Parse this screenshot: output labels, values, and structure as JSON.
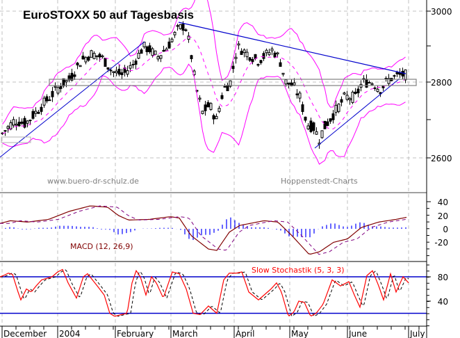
{
  "chart_data": [
    {
      "type": "candlestick",
      "title": "EuroSTOXX 50 auf Tagesbasis",
      "panel": "price",
      "ylabel": "",
      "ylim": [
        2520,
        3030
      ],
      "y_ticks": [
        2600,
        2800,
        3000
      ],
      "x_labels": [
        "December",
        "2004",
        "February",
        "March",
        "April",
        "May",
        "June",
        "July"
      ],
      "grid": true,
      "watermarks": [
        "www.buero-dr-schulz.de",
        "Hoppenstedt-Charts"
      ],
      "overlays": [
        "Bollinger upper band (magenta)",
        "Bollinger lower band (magenta)",
        "moving average (magenta dashed)",
        "trendlines (blue)",
        "horizontal support box at 2800 (gray)"
      ],
      "approx_close_by_month": [
        {
          "period": "early December 2003",
          "close": 2680
        },
        {
          "period": "end December 2003",
          "close": 2760
        },
        {
          "period": "mid January 2004",
          "close": 2880
        },
        {
          "period": "end January 2004",
          "close": 2820
        },
        {
          "period": "mid February 2004",
          "close": 2900
        },
        {
          "period": "early March 2004",
          "close": 2960
        },
        {
          "period": "mid March 2004",
          "close": 2720
        },
        {
          "period": "end March 2004",
          "close": 2790
        },
        {
          "period": "early April 2004",
          "close": 2900
        },
        {
          "period": "mid April 2004",
          "close": 2890
        },
        {
          "period": "end April 2004",
          "close": 2780
        },
        {
          "period": "early May 2004",
          "close": 2670
        },
        {
          "period": "mid May 2004",
          "close": 2650
        },
        {
          "period": "end May 2004",
          "close": 2740
        },
        {
          "period": "mid June 2004",
          "close": 2800
        },
        {
          "period": "end June 2004",
          "close": 2820
        }
      ],
      "trendlines": [
        {
          "from": {
            "period": "early December 2003",
            "value": 2600
          },
          "to": {
            "period": "mid January 2004",
            "value": 2890
          }
        },
        {
          "from": {
            "period": "early March 2004",
            "value": 2970
          },
          "to": {
            "period": "end June 2004",
            "value": 2810
          }
        },
        {
          "from": {
            "period": "mid May 2004",
            "value": 2625
          },
          "to": {
            "period": "end June 2004",
            "value": 2800
          }
        }
      ]
    },
    {
      "type": "line",
      "title": "MACD (12, 26,9)",
      "panel": "macd",
      "ylim": [
        -40,
        50
      ],
      "y_ticks": [
        40,
        20,
        0,
        -20
      ],
      "series": [
        {
          "name": "MACD",
          "color": "#800000",
          "style": "solid"
        },
        {
          "name": "Signal",
          "color": "#800080",
          "style": "dashed"
        },
        {
          "name": "Histogram",
          "color": "#0000ff",
          "style": "bars"
        }
      ],
      "approx_macd": [
        {
          "period": "early December 2003",
          "value": 8
        },
        {
          "period": "end December 2003",
          "value": 12
        },
        {
          "period": "mid January 2004",
          "value": 28
        },
        {
          "period": "end January 2004",
          "value": 34
        },
        {
          "period": "mid February 2004",
          "value": 13
        },
        {
          "period": "early March 2004",
          "value": 18
        },
        {
          "period": "mid March 2004",
          "value": -10
        },
        {
          "period": "end March 2004",
          "value": -30
        },
        {
          "period": "early April 2004",
          "value": 2
        },
        {
          "period": "mid April 2004",
          "value": 12
        },
        {
          "period": "end April 2004",
          "value": 8
        },
        {
          "period": "mid May 2004",
          "value": -38
        },
        {
          "period": "end May 2004",
          "value": -18
        },
        {
          "period": "mid June 2004",
          "value": 8
        },
        {
          "period": "end June 2004",
          "value": 16
        }
      ]
    },
    {
      "type": "line",
      "title": "Slow Stochastik (5, 3, 3)",
      "panel": "stochastic",
      "ylim": [
        0,
        100
      ],
      "y_ticks": [
        80,
        40
      ],
      "reference_lines": [
        80,
        20
      ],
      "series": [
        {
          "name": "%K",
          "color": "#ff0000",
          "style": "solid"
        },
        {
          "name": "%D",
          "color": "#000000",
          "style": "dashed"
        }
      ]
    }
  ],
  "header": {
    "title": "EuroSTOXX 50 auf Tagesbasis"
  },
  "price_axis": {
    "labels": [
      "3000",
      "2800",
      "2600"
    ]
  },
  "macd_axis": {
    "labels": [
      "40",
      "20",
      "0",
      "-20"
    ]
  },
  "stoch_axis": {
    "labels": [
      "80",
      "40"
    ]
  },
  "watermarks": {
    "left": "www.buero-dr-schulz.de",
    "right": "Hoppenstedt-Charts"
  },
  "indicators": {
    "macd_label": "MACD (12, 26,9)",
    "stoch_label": "Slow Stochastik (5, 3, 3)"
  },
  "x_axis": {
    "months": [
      "December",
      "2004",
      "February",
      "March",
      "April",
      "May",
      "June",
      "July"
    ]
  },
  "colors": {
    "candle": "#000000",
    "bollinger": "#ff00ff",
    "trendline": "#0000cc",
    "macd": "#800000",
    "signal": "#800080",
    "histogram": "#0000ff",
    "stoch_k": "#ff0000",
    "stoch_d": "#000000",
    "grid": "#c0c0c0"
  }
}
